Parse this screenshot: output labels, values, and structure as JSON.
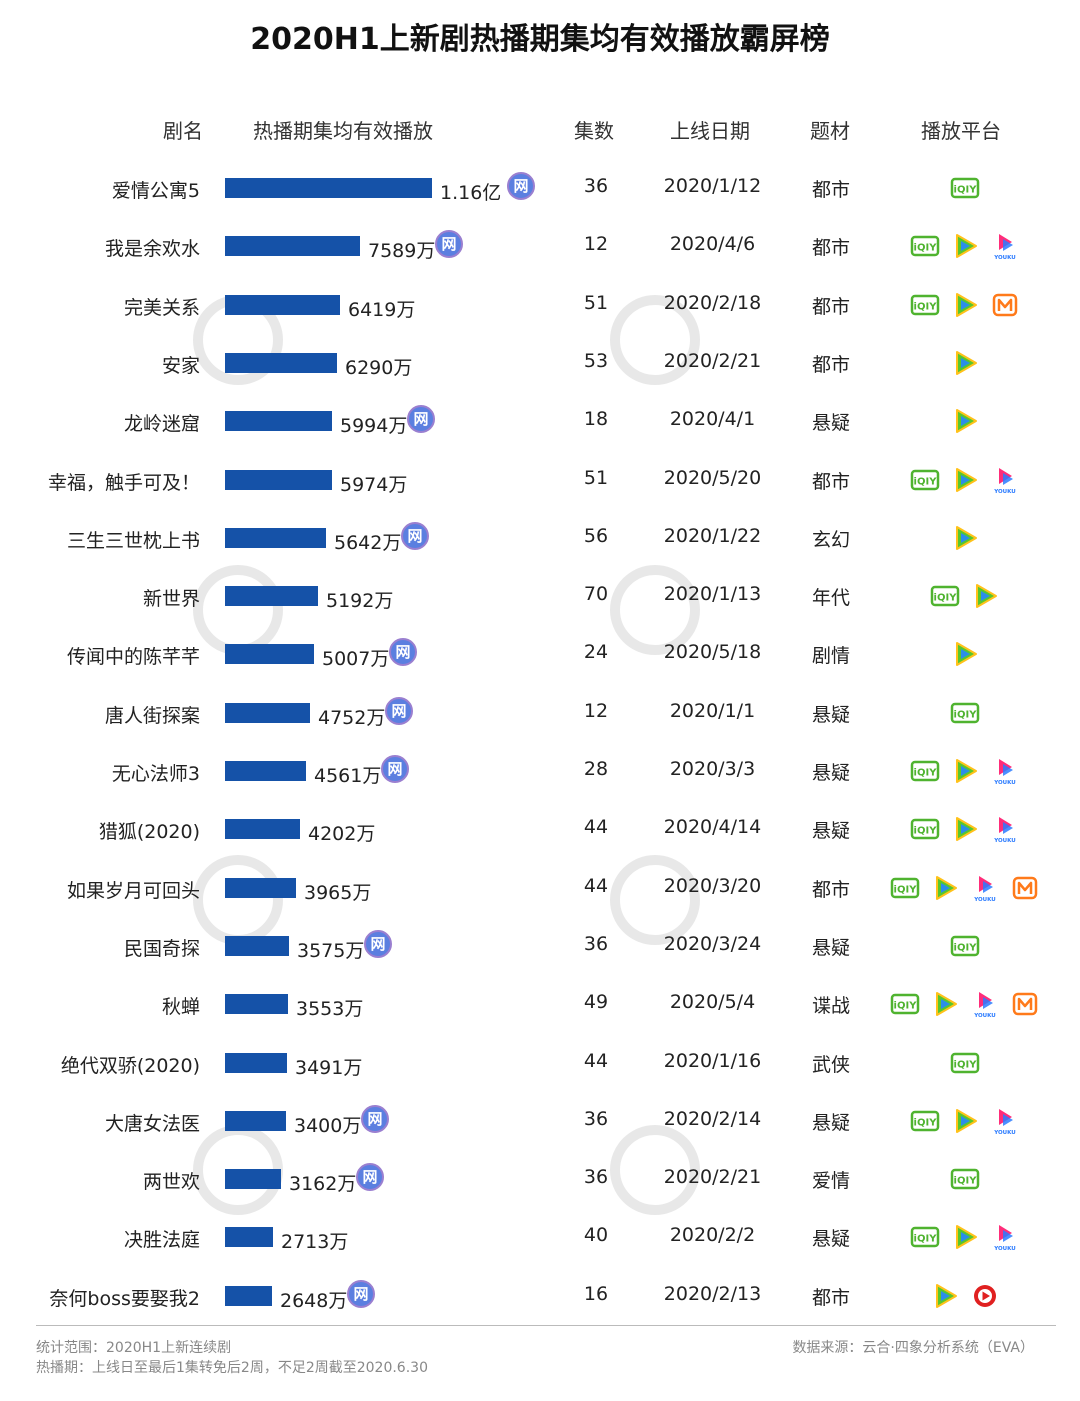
{
  "title": "2020H1上新剧热播期集均有效播放霸屏榜",
  "headers": {
    "name": "剧名",
    "play": "热播期集均有效播放",
    "episodes": "集数",
    "date": "上线日期",
    "genre": "题材",
    "platform": "播放平台"
  },
  "colors": {
    "bar": "#1552a8",
    "iqiyi": "#4fb32f",
    "tencent_blue": "#2b8ee8",
    "tencent_green": "#57c72c",
    "tencent_yellow": "#ffc21a",
    "youku_pink": "#ff2d7a",
    "youku_blue": "#2b7bff",
    "mango": "#ff7a1a",
    "pptv": "#e02020",
    "wang_badge": "#5b7fe0"
  },
  "network_badge": "网",
  "icon_labels": {
    "iqiyi": "iQIY",
    "youku": "YOUKU"
  },
  "chart_data": {
    "type": "bar",
    "title": "2020H1上新剧热播期集均有效播放霸屏榜",
    "xlabel": "热播期集均有效播放",
    "ylabel": "剧名",
    "unit": "万",
    "xlim": [
      0,
      11600
    ],
    "categories": [
      "爱情公寓5",
      "我是余欢水",
      "完美关系",
      "安家",
      "龙岭迷窟",
      "幸福，触手可及！",
      "三生三世枕上书",
      "新世界",
      "传闻中的陈芊芊",
      "唐人街探案",
      "无心法师3",
      "猎狐(2020)",
      "如果岁月可回头",
      "民国奇探",
      "秋蝉",
      "绝代双骄(2020)",
      "大唐女法医",
      "两世欢",
      "决胜法庭",
      "奈何boss要娶我2"
    ],
    "values": [
      11600,
      7589,
      6419,
      6290,
      5994,
      5974,
      5642,
      5192,
      5007,
      4752,
      4561,
      4202,
      3965,
      3575,
      3553,
      3491,
      3400,
      3162,
      2713,
      2648
    ],
    "rows": [
      {
        "name": "爱情公寓5",
        "label": "1.16亿",
        "badge": true,
        "episodes": "36",
        "date": "2020/1/12",
        "genre": "都市",
        "platforms": [
          "iqiyi"
        ]
      },
      {
        "name": "我是余欢水",
        "label": "7589万",
        "badge": true,
        "episodes": "12",
        "date": "2020/4/6",
        "genre": "都市",
        "platforms": [
          "iqiyi",
          "tencent",
          "youku"
        ]
      },
      {
        "name": "完美关系",
        "label": "6419万",
        "badge": false,
        "episodes": "51",
        "date": "2020/2/18",
        "genre": "都市",
        "platforms": [
          "iqiyi",
          "tencent",
          "mango"
        ]
      },
      {
        "name": "安家",
        "label": "6290万",
        "badge": false,
        "episodes": "53",
        "date": "2020/2/21",
        "genre": "都市",
        "platforms": [
          "tencent"
        ]
      },
      {
        "name": "龙岭迷窟",
        "label": "5994万",
        "badge": true,
        "episodes": "18",
        "date": "2020/4/1",
        "genre": "悬疑",
        "platforms": [
          "tencent"
        ]
      },
      {
        "name": "幸福，触手可及！",
        "label": "5974万",
        "badge": false,
        "episodes": "51",
        "date": "2020/5/20",
        "genre": "都市",
        "platforms": [
          "iqiyi",
          "tencent",
          "youku"
        ]
      },
      {
        "name": "三生三世枕上书",
        "label": "5642万",
        "badge": true,
        "episodes": "56",
        "date": "2020/1/22",
        "genre": "玄幻",
        "platforms": [
          "tencent"
        ]
      },
      {
        "name": "新世界",
        "label": "5192万",
        "badge": false,
        "episodes": "70",
        "date": "2020/1/13",
        "genre": "年代",
        "platforms": [
          "iqiyi",
          "tencent"
        ]
      },
      {
        "name": "传闻中的陈芊芊",
        "label": "5007万",
        "badge": true,
        "episodes": "24",
        "date": "2020/5/18",
        "genre": "剧情",
        "platforms": [
          "tencent"
        ]
      },
      {
        "name": "唐人街探案",
        "label": "4752万",
        "badge": true,
        "episodes": "12",
        "date": "2020/1/1",
        "genre": "悬疑",
        "platforms": [
          "iqiyi"
        ]
      },
      {
        "name": "无心法师3",
        "label": "4561万",
        "badge": true,
        "episodes": "28",
        "date": "2020/3/3",
        "genre": "悬疑",
        "platforms": [
          "iqiyi",
          "tencent",
          "youku"
        ]
      },
      {
        "name": "猎狐(2020)",
        "label": "4202万",
        "badge": false,
        "episodes": "44",
        "date": "2020/4/14",
        "genre": "悬疑",
        "platforms": [
          "iqiyi",
          "tencent",
          "youku"
        ]
      },
      {
        "name": "如果岁月可回头",
        "label": "3965万",
        "badge": false,
        "episodes": "44",
        "date": "2020/3/20",
        "genre": "都市",
        "platforms": [
          "iqiyi",
          "tencent",
          "youku",
          "mango"
        ]
      },
      {
        "name": "民国奇探",
        "label": "3575万",
        "badge": true,
        "episodes": "36",
        "date": "2020/3/24",
        "genre": "悬疑",
        "platforms": [
          "iqiyi"
        ]
      },
      {
        "name": "秋蝉",
        "label": "3553万",
        "badge": false,
        "episodes": "49",
        "date": "2020/5/4",
        "genre": "谍战",
        "platforms": [
          "iqiyi",
          "tencent",
          "youku",
          "mango"
        ]
      },
      {
        "name": "绝代双骄(2020)",
        "label": "3491万",
        "badge": false,
        "episodes": "44",
        "date": "2020/1/16",
        "genre": "武侠",
        "platforms": [
          "iqiyi"
        ]
      },
      {
        "name": "大唐女法医",
        "label": "3400万",
        "badge": true,
        "episodes": "36",
        "date": "2020/2/14",
        "genre": "悬疑",
        "platforms": [
          "iqiyi",
          "tencent",
          "youku"
        ]
      },
      {
        "name": "两世欢",
        "label": "3162万",
        "badge": true,
        "episodes": "36",
        "date": "2020/2/21",
        "genre": "爱情",
        "platforms": [
          "iqiyi"
        ]
      },
      {
        "name": "决胜法庭",
        "label": "2713万",
        "badge": false,
        "episodes": "40",
        "date": "2020/2/2",
        "genre": "悬疑",
        "platforms": [
          "iqiyi",
          "tencent",
          "youku"
        ]
      },
      {
        "name": "奈何boss要娶我2",
        "label": "2648万",
        "badge": true,
        "episodes": "16",
        "date": "2020/2/13",
        "genre": "都市",
        "platforms": [
          "tencent",
          "pptv"
        ]
      }
    ]
  },
  "footer": {
    "scope": "统计范围：2020H1上新连续剧",
    "period": "热播期：上线日至最后1集转免后2周，不足2周截至2020.6.30",
    "source": "数据来源：云合·四象分析系统（EVA）"
  }
}
